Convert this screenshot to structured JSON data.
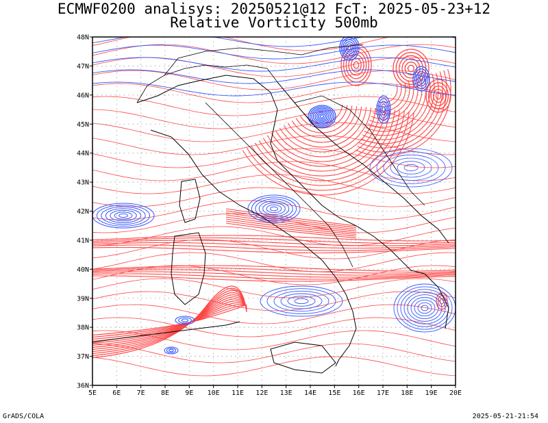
{
  "title": {
    "line1": "ECMWF0200 analisys: 20250521@12 FcT: 2025-05-23+12",
    "line2": "Relative Vorticity 500mb"
  },
  "axes": {
    "lon_labels": [
      "5E",
      "6E",
      "7E",
      "8E",
      "9E",
      "10E",
      "11E",
      "12E",
      "13E",
      "14E",
      "15E",
      "16E",
      "17E",
      "18E",
      "19E",
      "20E"
    ],
    "lat_labels": [
      "36N",
      "37N",
      "38N",
      "39N",
      "40N",
      "41N",
      "42N",
      "43N",
      "44N",
      "45N",
      "46N",
      "47N",
      "48N"
    ],
    "lon_range": [
      5,
      20
    ],
    "lat_range": [
      36,
      48
    ]
  },
  "colors": {
    "positive_vorticity": "#ff4444",
    "negative_vorticity": "#3355ff",
    "grid": "#999999",
    "coastline": "#000000"
  },
  "footer": {
    "left": "GrADS/COLA",
    "right": "2025-05-21-21:54"
  }
}
